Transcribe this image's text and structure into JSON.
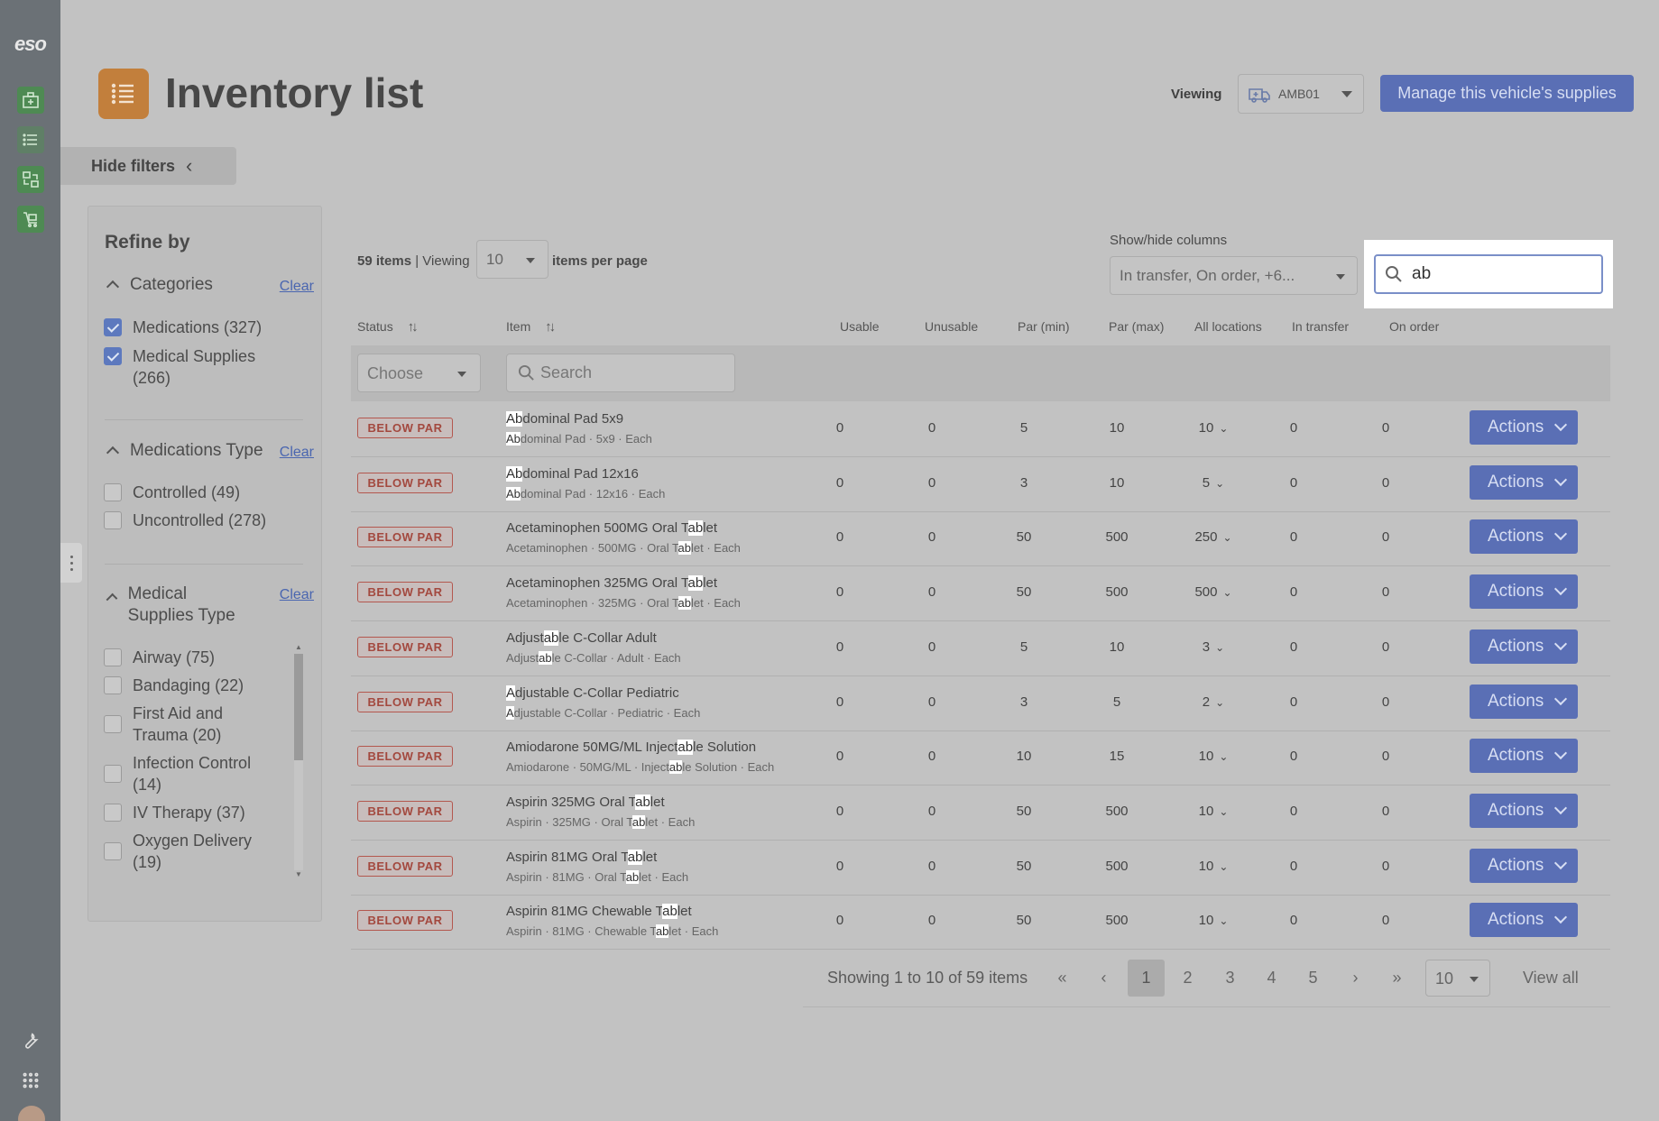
{
  "rail": {
    "logo": "eso",
    "nav": [
      {
        "icon": "dashboard-icon"
      },
      {
        "icon": "list-icon"
      },
      {
        "icon": "transfer-icon"
      },
      {
        "icon": "cart-icon"
      }
    ],
    "tools": [
      {
        "icon": "wrench-icon"
      },
      {
        "icon": "apps-grid-icon"
      }
    ]
  },
  "header": {
    "title": "Inventory list",
    "viewing_label": "Viewing",
    "vehicle": "AMB01",
    "manage_button": "Manage this vehicle's supplies",
    "accent_color": "#5a6fb5",
    "title_icon_color": "#c27f3c"
  },
  "hide_filters": "Hide filters",
  "filters": {
    "title": "Refine by",
    "clear_label": "Clear",
    "categories": {
      "heading": "Categories",
      "items": [
        {
          "label": "Medications (327)",
          "checked": true
        },
        {
          "label": "Medical Supplies (266)",
          "checked": true
        }
      ]
    },
    "medications_type": {
      "heading": "Medications Type",
      "items": [
        {
          "label": "Controlled (49)",
          "checked": false
        },
        {
          "label": "Uncontrolled (278)",
          "checked": false
        }
      ]
    },
    "medical_supplies_type": {
      "heading": "Medical Supplies Type",
      "items": [
        {
          "label": "Airway (75)",
          "checked": false
        },
        {
          "label": "Bandaging (22)",
          "checked": false
        },
        {
          "label": "First Aid and Trauma (20)",
          "checked": false
        },
        {
          "label": "Infection Control (14)",
          "checked": false
        },
        {
          "label": "IV Therapy (37)",
          "checked": false
        },
        {
          "label": "Oxygen Delivery (19)",
          "checked": false
        }
      ]
    }
  },
  "toolbar": {
    "item_count": "59 items",
    "viewing": "| Viewing",
    "per_page": "10",
    "per_page_label": "items per page",
    "show_hide_label": "Show/hide columns",
    "show_hide_value": "In transfer, On order, +6...",
    "search_value": "ab"
  },
  "table": {
    "headers": {
      "status": "Status",
      "item": "Item",
      "usable": "Usable",
      "unusable": "Unusable",
      "par_min": "Par (min)",
      "par_max": "Par (max)",
      "all_locations": "All locations",
      "in_transfer": "In transfer",
      "on_order": "On order"
    },
    "status_filter_placeholder": "Choose",
    "item_search_placeholder": "Search",
    "actions_label": "Actions",
    "rows": [
      {
        "status": "BELOW PAR",
        "name": [
          "",
          "Ab",
          "dominal Pad 5x9"
        ],
        "sub": [
          "",
          "Ab",
          "dominal Pad · 5x9 · Each"
        ],
        "usable": "0",
        "unusable": "0",
        "par_min": "5",
        "par_max": "10",
        "all_locations": "10",
        "in_transfer": "0",
        "on_order": "0"
      },
      {
        "status": "BELOW PAR",
        "name": [
          "",
          "Ab",
          "dominal Pad 12x16"
        ],
        "sub": [
          "",
          "Ab",
          "dominal Pad · 12x16 · Each"
        ],
        "usable": "0",
        "unusable": "0",
        "par_min": "3",
        "par_max": "10",
        "all_locations": "5",
        "in_transfer": "0",
        "on_order": "0"
      },
      {
        "status": "BELOW PAR",
        "name": [
          "Acetaminophen 500MG Oral T",
          "ab",
          "let"
        ],
        "sub": [
          "Acetaminophen · 500MG · Oral T",
          "ab",
          "let · Each"
        ],
        "usable": "0",
        "unusable": "0",
        "par_min": "50",
        "par_max": "500",
        "all_locations": "250",
        "in_transfer": "0",
        "on_order": "0"
      },
      {
        "status": "BELOW PAR",
        "name": [
          "Acetaminophen 325MG Oral T",
          "ab",
          "let"
        ],
        "sub": [
          "Acetaminophen · 325MG · Oral T",
          "ab",
          "let · Each"
        ],
        "usable": "0",
        "unusable": "0",
        "par_min": "50",
        "par_max": "500",
        "all_locations": "500",
        "in_transfer": "0",
        "on_order": "0"
      },
      {
        "status": "BELOW PAR",
        "name": [
          "Adjust",
          "ab",
          "le C-Collar Adult"
        ],
        "sub": [
          "Adjust",
          "ab",
          "le C-Collar · Adult · Each"
        ],
        "usable": "0",
        "unusable": "0",
        "par_min": "5",
        "par_max": "10",
        "all_locations": "3",
        "in_transfer": "0",
        "on_order": "0"
      },
      {
        "status": "BELOW PAR",
        "name": [
          "",
          "A",
          "djustable C-Collar Pediatric"
        ],
        "sub": [
          "",
          "A",
          "djustable C-Collar · Pediatric · Each"
        ],
        "usable": "0",
        "unusable": "0",
        "par_min": "3",
        "par_max": "5",
        "all_locations": "2",
        "in_transfer": "0",
        "on_order": "0"
      },
      {
        "status": "BELOW PAR",
        "name": [
          "Amiodarone 50MG/ML Inject",
          "ab",
          "le Solution"
        ],
        "sub": [
          "Amiodarone · 50MG/ML · Inject",
          "ab",
          "le Solution · Each"
        ],
        "usable": "0",
        "unusable": "0",
        "par_min": "10",
        "par_max": "15",
        "all_locations": "10",
        "in_transfer": "0",
        "on_order": "0"
      },
      {
        "status": "BELOW PAR",
        "name": [
          "Aspirin 325MG Oral T",
          "ab",
          "let"
        ],
        "sub": [
          "Aspirin · 325MG · Oral T",
          "ab",
          "let · Each"
        ],
        "usable": "0",
        "unusable": "0",
        "par_min": "50",
        "par_max": "500",
        "all_locations": "10",
        "in_transfer": "0",
        "on_order": "0"
      },
      {
        "status": "BELOW PAR",
        "name": [
          "Aspirin 81MG Oral T",
          "ab",
          "let"
        ],
        "sub": [
          "Aspirin · 81MG · Oral T",
          "ab",
          "let · Each"
        ],
        "usable": "0",
        "unusable": "0",
        "par_min": "50",
        "par_max": "500",
        "all_locations": "10",
        "in_transfer": "0",
        "on_order": "0"
      },
      {
        "status": "BELOW PAR",
        "name": [
          "Aspirin 81MG Chewable T",
          "ab",
          "let"
        ],
        "sub": [
          "Aspirin · 81MG · Chewable T",
          "ab",
          "let · Each"
        ],
        "usable": "0",
        "unusable": "0",
        "par_min": "50",
        "par_max": "500",
        "all_locations": "10",
        "in_transfer": "0",
        "on_order": "0"
      }
    ]
  },
  "pagination": {
    "showing": "Showing 1 to 10 of 59 items",
    "first": "«",
    "prev": "‹",
    "pages": [
      "1",
      "2",
      "3",
      "4",
      "5"
    ],
    "current": "1",
    "next": "›",
    "last": "»",
    "page_size": "10",
    "view_all": "View all"
  }
}
